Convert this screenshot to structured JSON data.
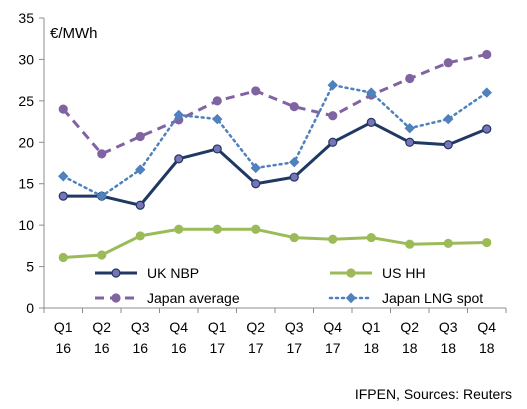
{
  "chart_data": {
    "type": "line",
    "unit_label": "€/MWh",
    "source_note": "IFPEN, Sources: Reuters",
    "categories": [
      [
        "Q1",
        "16"
      ],
      [
        "Q2",
        "16"
      ],
      [
        "Q3",
        "16"
      ],
      [
        "Q4",
        "16"
      ],
      [
        "Q1",
        "17"
      ],
      [
        "Q2",
        "17"
      ],
      [
        "Q3",
        "17"
      ],
      [
        "Q4",
        "17"
      ],
      [
        "Q1",
        "18"
      ],
      [
        "Q2",
        "18"
      ],
      [
        "Q3",
        "18"
      ],
      [
        "Q4",
        "18"
      ]
    ],
    "ylim": [
      0,
      35
    ],
    "yticks": [
      0,
      5,
      10,
      15,
      20,
      25,
      30,
      35
    ],
    "grid": false,
    "series": [
      {
        "name": "UK NBP",
        "color": "#1F3864",
        "dash": "solid",
        "marker": "circle",
        "marker_color": "#7A73B5",
        "values": [
          13.5,
          13.5,
          12.4,
          18.0,
          19.2,
          15.0,
          15.8,
          20.0,
          22.4,
          20.0,
          19.7,
          21.6
        ]
      },
      {
        "name": "US HH",
        "color": "#9BBB59",
        "dash": "solid",
        "marker": "circle",
        "marker_color": "#9BBB59",
        "values": [
          6.1,
          6.4,
          8.7,
          9.5,
          9.5,
          9.5,
          8.5,
          8.3,
          8.5,
          7.7,
          7.8,
          7.9
        ]
      },
      {
        "name": "Japan average",
        "color": "#8064A2",
        "dash": "dashed",
        "marker": "circle",
        "marker_color": "#8064A2",
        "values": [
          24.0,
          18.6,
          20.7,
          22.7,
          25.0,
          26.2,
          24.3,
          23.2,
          25.7,
          27.7,
          29.6,
          30.6
        ]
      },
      {
        "name": "Japan LNG spot",
        "color": "#4F81BD",
        "dash": "dotted",
        "marker": "diamond",
        "marker_color": "#4F81BD",
        "values": [
          15.9,
          13.5,
          16.7,
          23.3,
          22.8,
          16.9,
          17.6,
          26.9,
          26.0,
          21.7,
          22.8,
          26.0
        ]
      }
    ],
    "legend": {
      "placement": "inside-bottom"
    }
  }
}
